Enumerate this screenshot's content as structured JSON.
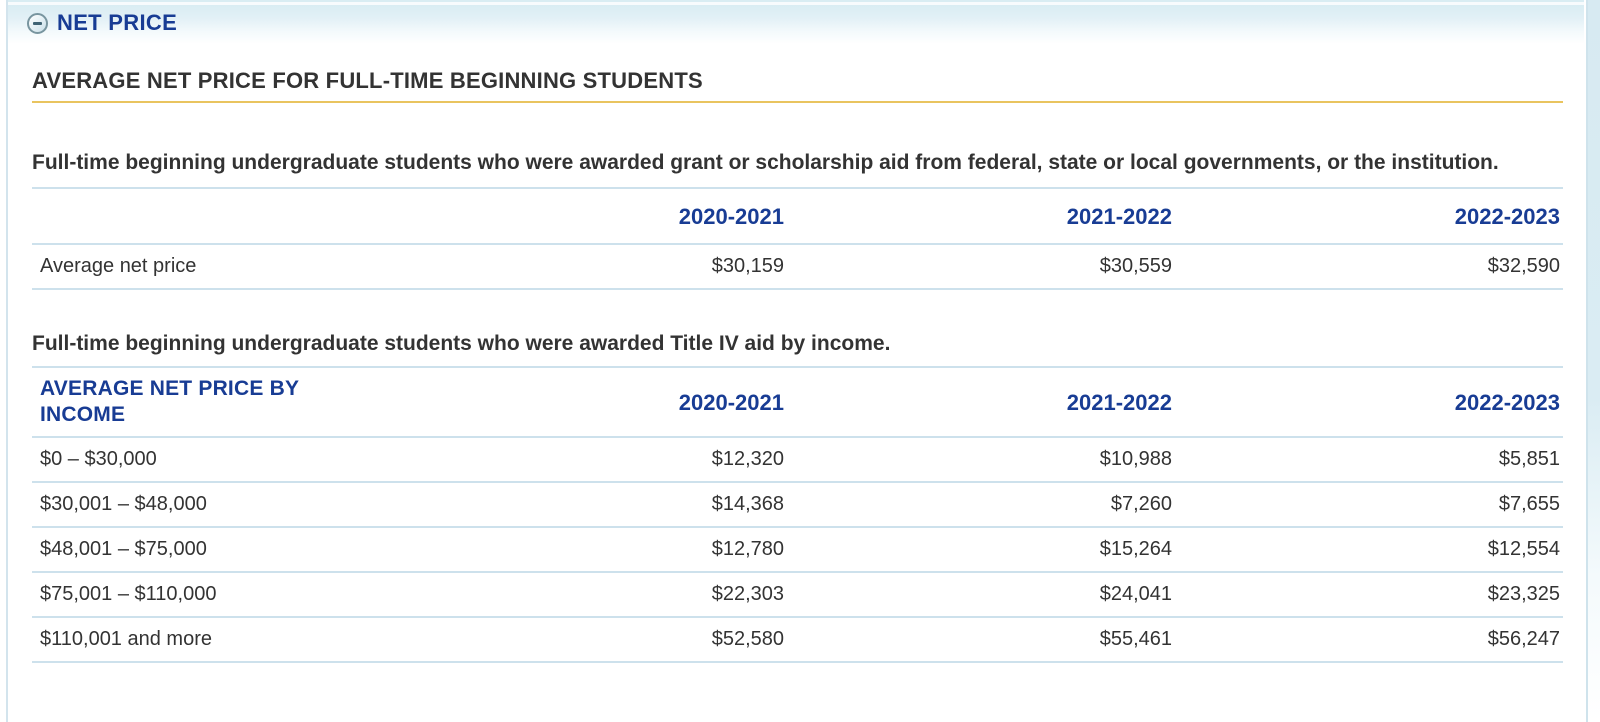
{
  "section": {
    "title": "NET PRICE",
    "heading": "AVERAGE NET PRICE FOR FULL-TIME BEGINNING STUDENTS",
    "intro_grant": "Full-time beginning undergraduate students who were awarded grant or scholarship aid from federal, state or local governments, or the institution.",
    "intro_income": "Full-time beginning undergraduate students who were awarded Title IV aid by income."
  },
  "years": [
    "2020-2021",
    "2021-2022",
    "2022-2023"
  ],
  "net_price_table": {
    "rows": [
      {
        "label": "Average net price",
        "values": [
          "$30,159",
          "$30,559",
          "$32,590"
        ]
      }
    ]
  },
  "income_table": {
    "header_label": "AVERAGE NET PRICE BY INCOME",
    "rows": [
      {
        "label": "$0 – $30,000",
        "values": [
          "$12,320",
          "$10,988",
          "$5,851"
        ]
      },
      {
        "label": "$30,001 – $48,000",
        "values": [
          "$14,368",
          "$7,260",
          "$7,655"
        ]
      },
      {
        "label": "$48,001 – $75,000",
        "values": [
          "$12,780",
          "$15,264",
          "$12,554"
        ]
      },
      {
        "label": "$75,001 – $110,000",
        "values": [
          "$22,303",
          "$24,041",
          "$23,325"
        ]
      },
      {
        "label": "$110,001 and more",
        "values": [
          "$52,580",
          "$55,461",
          "$56,247"
        ]
      }
    ]
  },
  "colors": {
    "navy_text": "#183c94",
    "body_text": "#333333",
    "gold_underline": "#e9c45f",
    "table_border": "#cde1ec",
    "header_band": "#d9edf3"
  }
}
